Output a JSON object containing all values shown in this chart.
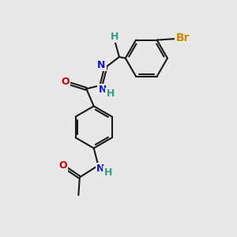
{
  "bg_color": "#e8e8e8",
  "bond_color": "#1a1a1a",
  "bond_lw": 1.5,
  "dbo": 0.06,
  "N_color": "#1515cc",
  "O_color": "#cc0000",
  "Br_color": "#cc8800",
  "H_color": "#3a9a8a",
  "fs": 9,
  "fs_Br": 10,
  "xlim": [
    -0.5,
    7.5
  ],
  "ylim": [
    0.0,
    9.5
  ]
}
